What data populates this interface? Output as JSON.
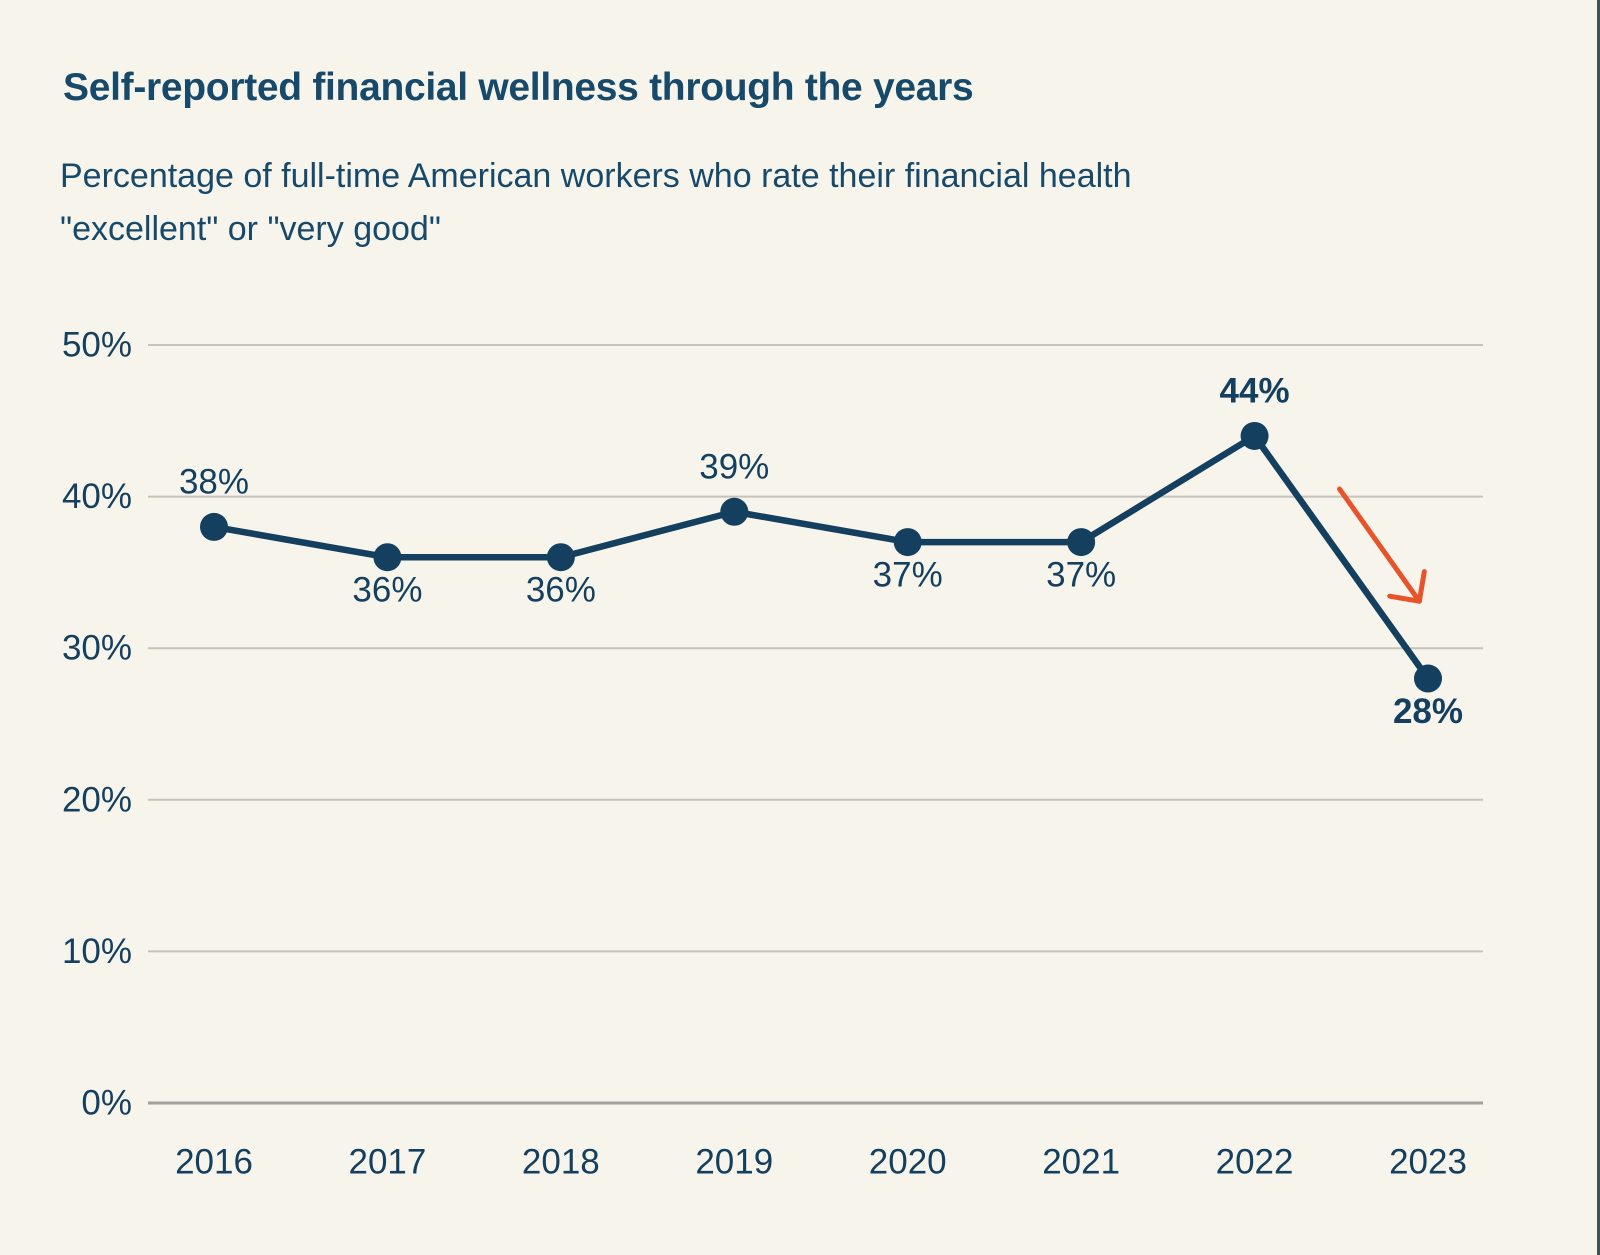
{
  "colors": {
    "background": "#f7f5eb",
    "heading": "#17496b",
    "ink": "#143f5f",
    "gridline": "#c4c3bc",
    "axis_line": "#a2a19b",
    "arrow": "#e8532a",
    "edge_border": "#3f525a"
  },
  "chart_data": {
    "type": "line",
    "title": "Self-reported financial wellness through the years",
    "subtitle_lines": [
      "Percentage of full-time American workers who rate their financial health",
      "\"excellent\" or \"very good\""
    ],
    "categories": [
      "2016",
      "2017",
      "2018",
      "2019",
      "2020",
      "2021",
      "2022",
      "2023"
    ],
    "values": [
      38,
      36,
      36,
      39,
      37,
      37,
      44,
      28
    ],
    "unit": "%",
    "point_labels": [
      "38%",
      "36%",
      "36%",
      "39%",
      "37%",
      "37%",
      "44%",
      "28%"
    ],
    "label_positions": [
      "above",
      "below",
      "below",
      "above",
      "below",
      "below",
      "above",
      "below"
    ],
    "label_bold": [
      false,
      false,
      false,
      false,
      false,
      false,
      true,
      true
    ],
    "yticks": {
      "values": [
        0,
        10,
        20,
        30,
        40,
        50
      ],
      "labels": [
        "0%",
        "10%",
        "20%",
        "30%",
        "40%",
        "50%"
      ]
    },
    "ylim": [
      0,
      50
    ],
    "xlabel": "",
    "ylabel": "",
    "grid": "horizontal",
    "legend": "none",
    "annotation": {
      "type": "arrow",
      "color": "#e8532a",
      "from": {
        "x_index": 6.49,
        "value": 40.5
      },
      "to": {
        "x_index": 6.95,
        "value": 33.1
      },
      "meaning": "decline from 44% in 2022 to 28% in 2023"
    }
  }
}
